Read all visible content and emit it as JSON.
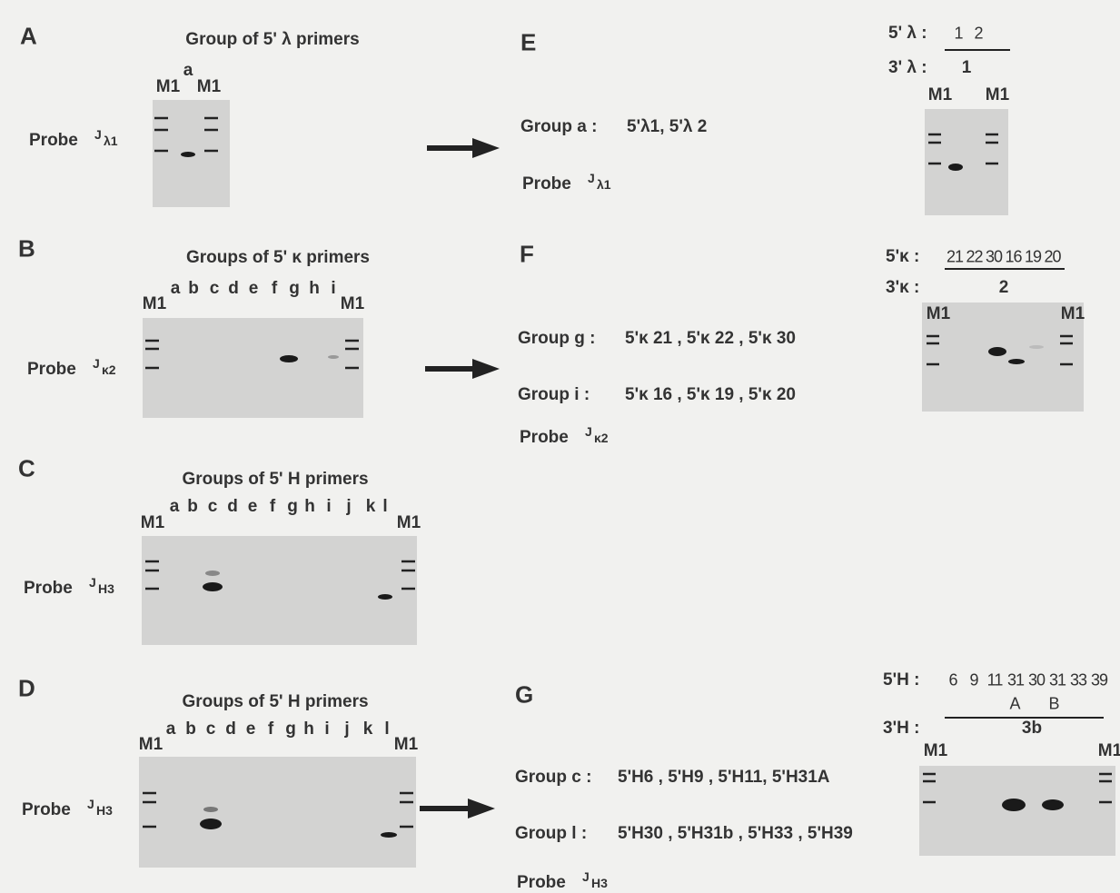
{
  "panels": {
    "A": {
      "letter": "A",
      "title": "Group of 5' λ primers",
      "lanes": [
        "M1",
        "a",
        "M1"
      ],
      "probe": "Probe",
      "probe_j": "J",
      "probe_sub": "λ1"
    },
    "B": {
      "letter": "B",
      "title": "Groups of 5' κ primers",
      "lanes": [
        "M1",
        "a",
        "b",
        "c",
        "d",
        "e",
        "f",
        "g",
        "h",
        "i",
        "M1"
      ],
      "probe": "Probe",
      "probe_j": "J",
      "probe_sub": "κ2"
    },
    "C": {
      "letter": "C",
      "title": "Groups of 5' H primers",
      "lanes": [
        "M1",
        "a",
        "b",
        "c",
        "d",
        "e",
        "f",
        "g",
        "h",
        "i",
        "j",
        "k",
        "l",
        "M1"
      ],
      "probe": "Probe",
      "probe_j": "J",
      "probe_sub": "H3"
    },
    "D": {
      "letter": "D",
      "title": "Groups of 5' H primers",
      "lanes": [
        "M1",
        "a",
        "b",
        "c",
        "d",
        "e",
        "f",
        "g",
        "h",
        "i",
        "j",
        "k",
        "l",
        "M1"
      ],
      "probe": "Probe",
      "probe_j": "J",
      "probe_sub": "H3"
    },
    "E": {
      "letter": "E",
      "groups": [
        {
          "name": "Group a :",
          "primers": "5'λ1, 5'λ 2"
        }
      ],
      "probe": "Probe",
      "probe_j": "J",
      "probe_sub": "λ1",
      "primer5": "5' λ :",
      "lanes5": [
        "1",
        "2"
      ],
      "primer3": "3' λ :",
      "lanes3": [
        "1"
      ],
      "markers": [
        "M1",
        "M1"
      ]
    },
    "F": {
      "letter": "F",
      "groups": [
        {
          "name": "Group g :",
          "primers": "5'κ 21 , 5'κ 22 , 5'κ 30"
        },
        {
          "name": "Group i :",
          "primers": "5'κ 16 , 5'κ 19 , 5'κ 20"
        }
      ],
      "probe": "Probe",
      "probe_j": "J",
      "probe_sub": "κ2",
      "primer5": "5'κ :",
      "lanes5": [
        "21",
        "22",
        "30",
        "16",
        "19",
        "20"
      ],
      "primer3": "3'κ :",
      "lanes3": [
        "2"
      ],
      "markers": [
        "M1",
        "M1"
      ]
    },
    "G": {
      "letter": "G",
      "groups": [
        {
          "name": "Group c :",
          "primers": "5'H6 , 5'H9 , 5'H11, 5'H31A"
        },
        {
          "name": "Group l :",
          "primers": "5'H30 , 5'H31b , 5'H33 , 5'H39"
        }
      ],
      "probe": "Probe",
      "probe_j": "J",
      "probe_sub": "H3",
      "primer5": "5'H :",
      "lanes5": [
        "6",
        "9",
        "11",
        "31",
        "30",
        "31",
        "33",
        "39"
      ],
      "sublanes": [
        "A",
        "B"
      ],
      "primer3": "3'H :",
      "lanes3": [
        "3b"
      ],
      "markers": [
        "M1",
        "M1"
      ]
    }
  }
}
